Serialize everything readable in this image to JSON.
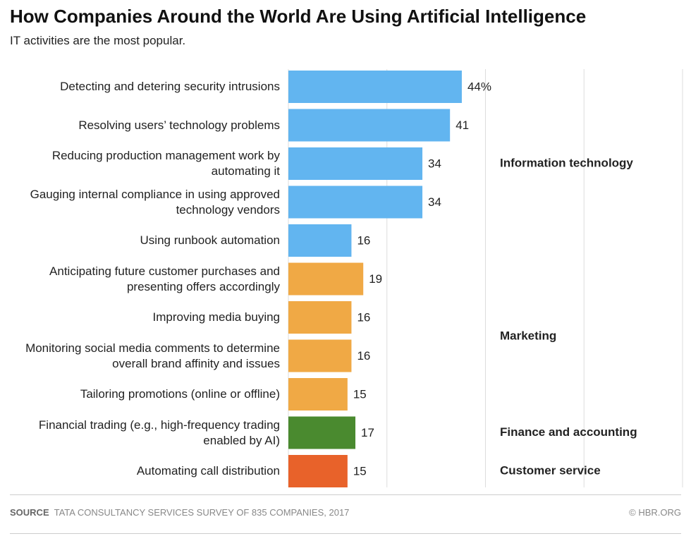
{
  "chart_data": {
    "type": "bar",
    "orientation": "horizontal",
    "title": "How Companies Around the World Are Using Artificial Intelligence",
    "subtitle": "IT activities are the most popular.",
    "categories": [
      "Detecting and detering security intrusions",
      "Resolving users’ technology problems",
      "Reducing production management work by automating it",
      "Gauging internal compliance in using approved technology vendors",
      "Using runbook automation",
      "Anticipating future customer purchases and presenting offers accordingly",
      "Improving media buying",
      "Monitoring social media comments to determine overall brand affinity and issues",
      "Tailoring promotions (online or offline)",
      "Financial trading (e.g., high-frequency trading enabled by AI)",
      "Automating call distribution"
    ],
    "series": [
      {
        "name": "Information technology",
        "color": "#62b5f0",
        "values": [
          44,
          41,
          34,
          34,
          16,
          null,
          null,
          null,
          null,
          null,
          null
        ],
        "value_labels": [
          "44%",
          "41",
          "34",
          "34",
          "16",
          null,
          null,
          null,
          null,
          null,
          null
        ]
      },
      {
        "name": "Marketing",
        "color": "#f0a945",
        "values": [
          null,
          null,
          null,
          null,
          null,
          19,
          16,
          16,
          15,
          null,
          null
        ],
        "value_labels": [
          null,
          null,
          null,
          null,
          null,
          "19",
          "16",
          "16",
          "15",
          null,
          null
        ]
      },
      {
        "name": "Finance and accounting",
        "color": "#4a8a2f",
        "values": [
          null,
          null,
          null,
          null,
          null,
          null,
          null,
          null,
          null,
          17,
          null
        ],
        "value_labels": [
          null,
          null,
          null,
          null,
          null,
          null,
          null,
          null,
          null,
          "17",
          null
        ]
      },
      {
        "name": "Customer service",
        "color": "#e8622a",
        "values": [
          null,
          null,
          null,
          null,
          null,
          null,
          null,
          null,
          null,
          null,
          15
        ],
        "value_labels": [
          null,
          null,
          null,
          null,
          null,
          null,
          null,
          null,
          null,
          null,
          "15"
        ]
      }
    ],
    "xlim": [
      0,
      100
    ],
    "xticks": [
      0,
      25,
      50,
      75,
      100
    ],
    "grid": true,
    "source": {
      "label": "SOURCE",
      "text": "TATA CONSULTANCY SERVICES SURVEY OF 835 COMPANIES, 2017"
    },
    "credit": "© HBR.ORG"
  }
}
